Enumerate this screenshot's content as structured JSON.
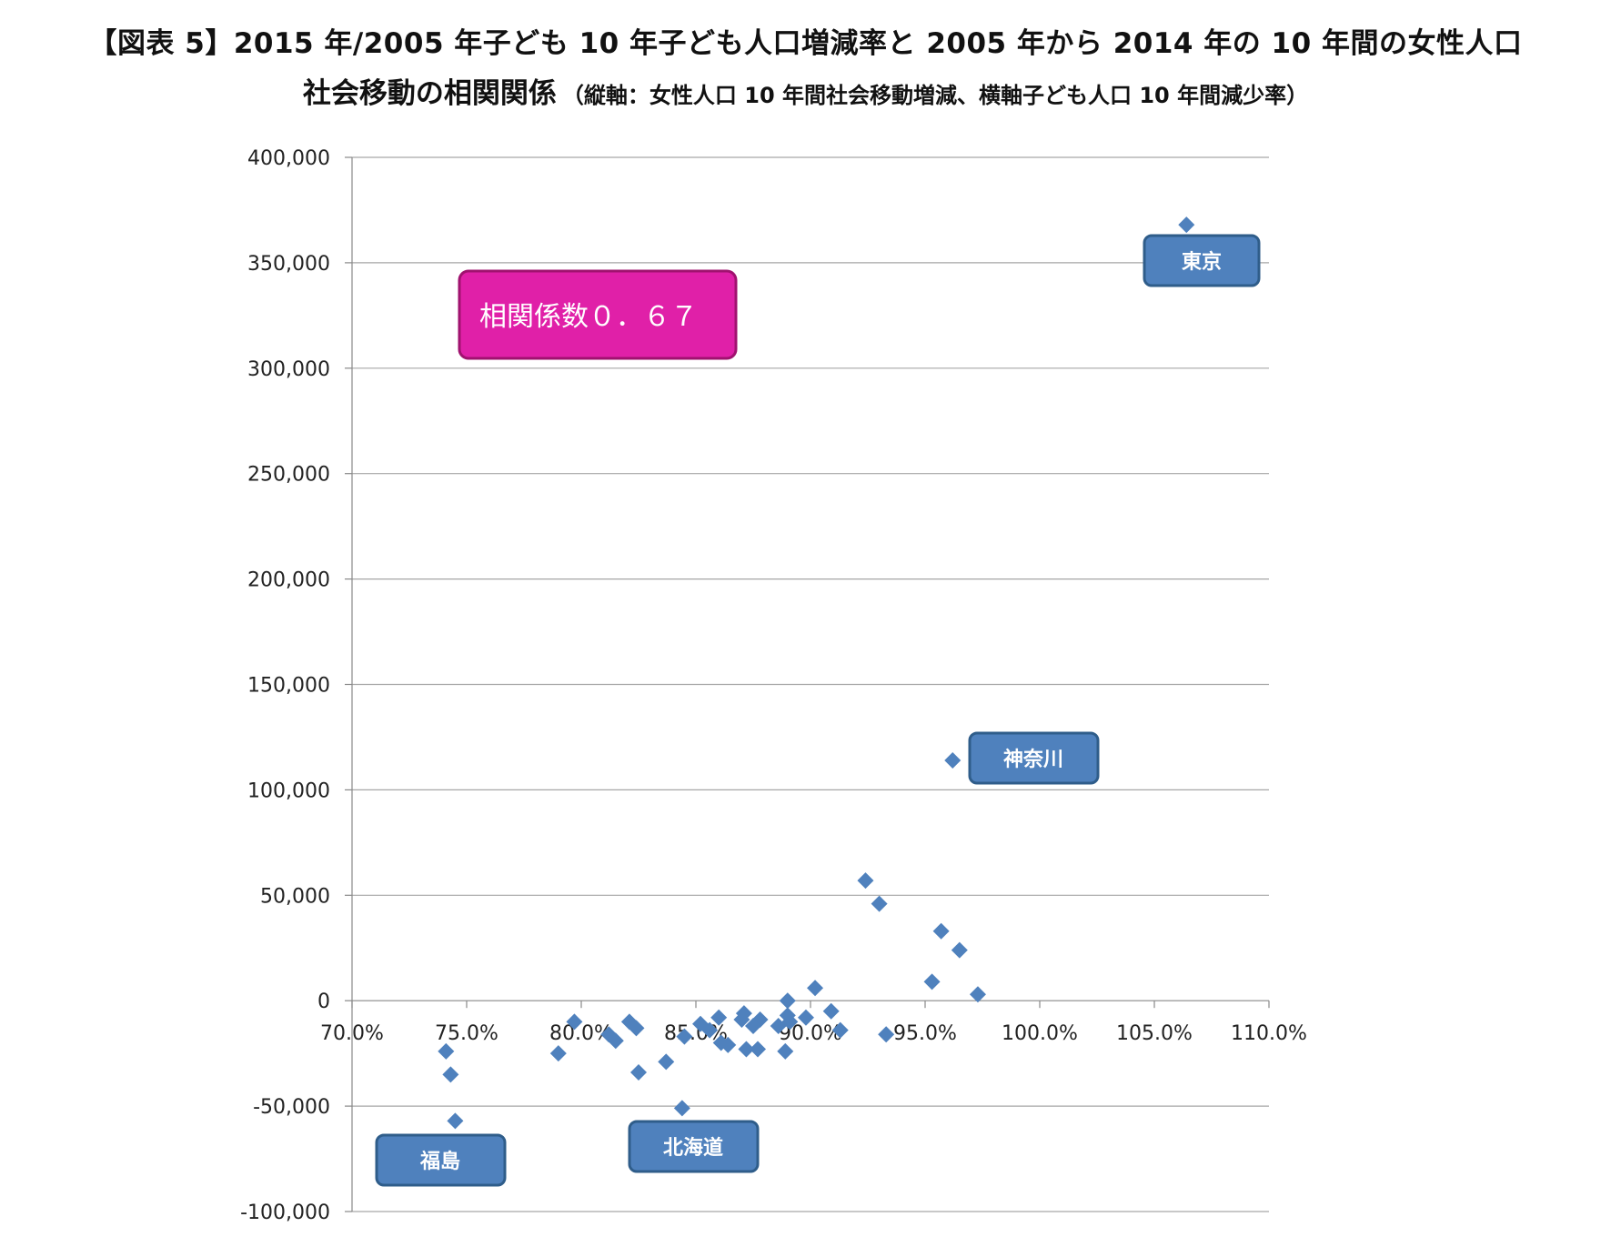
{
  "title": {
    "line1": "【図表 5】2015 年/2005 年子ども 10 年子ども人口増減率と 2005 年から 2014 年の 10 年間の女性人口",
    "line2_main": "社会移動の相関関係",
    "line2_sub": "（縦軸：女性人口 10 年間社会移動増減、横軸子ども人口 10 年間減少率）"
  },
  "correlation_label": "相関係数０．６７",
  "colors": {
    "marker": "#4f81bd",
    "callout_fill": "#4f81bd",
    "callout_stroke": "#2f5d8a",
    "corr_fill": "#e020a8",
    "corr_stroke": "#a0126f",
    "grid": "#a6a6a6"
  },
  "chart_data": {
    "type": "scatter",
    "xlim": [
      70,
      110
    ],
    "ylim": [
      -100000,
      400000
    ],
    "x_ticks": [
      {
        "value": 70,
        "label": "70.0%"
      },
      {
        "value": 75,
        "label": "75.0%"
      },
      {
        "value": 80,
        "label": "80.0%"
      },
      {
        "value": 85,
        "label": "85.0%"
      },
      {
        "value": 90,
        "label": "90.0%"
      },
      {
        "value": 95,
        "label": "95.0%"
      },
      {
        "value": 100,
        "label": "100.0%"
      },
      {
        "value": 105,
        "label": "105.0%"
      },
      {
        "value": 110,
        "label": "110.0%"
      }
    ],
    "y_ticks": [
      {
        "value": 400000,
        "label": "400,000"
      },
      {
        "value": 350000,
        "label": "350,000"
      },
      {
        "value": 300000,
        "label": "300,000"
      },
      {
        "value": 250000,
        "label": "250,000"
      },
      {
        "value": 200000,
        "label": "200,000"
      },
      {
        "value": 150000,
        "label": "150,000"
      },
      {
        "value": 100000,
        "label": "100,000"
      },
      {
        "value": 50000,
        "label": "50,000"
      },
      {
        "value": 0,
        "label": "0"
      },
      {
        "value": -50000,
        "label": "-50,000"
      },
      {
        "value": -100000,
        "label": "-100,000"
      }
    ],
    "grid": true,
    "points": [
      {
        "x": 106.4,
        "y": 368000
      },
      {
        "x": 96.2,
        "y": 114000
      },
      {
        "x": 92.4,
        "y": 57000
      },
      {
        "x": 93.0,
        "y": 46000
      },
      {
        "x": 95.7,
        "y": 33000
      },
      {
        "x": 96.5,
        "y": 24000
      },
      {
        "x": 95.3,
        "y": 9000
      },
      {
        "x": 97.3,
        "y": 3000
      },
      {
        "x": 90.2,
        "y": 6000
      },
      {
        "x": 89.0,
        "y": 0
      },
      {
        "x": 90.9,
        "y": -5000
      },
      {
        "x": 89.8,
        "y": -8000
      },
      {
        "x": 89.1,
        "y": -10000
      },
      {
        "x": 91.3,
        "y": -14000
      },
      {
        "x": 93.3,
        "y": -16000
      },
      {
        "x": 88.6,
        "y": -12000
      },
      {
        "x": 87.8,
        "y": -9000
      },
      {
        "x": 87.5,
        "y": -12000
      },
      {
        "x": 87.1,
        "y": -6000
      },
      {
        "x": 87.0,
        "y": -9000
      },
      {
        "x": 86.0,
        "y": -8000
      },
      {
        "x": 85.2,
        "y": -11000
      },
      {
        "x": 85.6,
        "y": -14000
      },
      {
        "x": 84.5,
        "y": -17000
      },
      {
        "x": 86.1,
        "y": -20000
      },
      {
        "x": 86.4,
        "y": -21000
      },
      {
        "x": 87.2,
        "y": -23000
      },
      {
        "x": 87.7,
        "y": -23000
      },
      {
        "x": 88.9,
        "y": -24000
      },
      {
        "x": 89.0,
        "y": -7000
      },
      {
        "x": 82.1,
        "y": -10000
      },
      {
        "x": 82.4,
        "y": -13000
      },
      {
        "x": 81.5,
        "y": -19000
      },
      {
        "x": 79.7,
        "y": -10000
      },
      {
        "x": 81.2,
        "y": -16000
      },
      {
        "x": 83.7,
        "y": -29000
      },
      {
        "x": 82.5,
        "y": -34000
      },
      {
        "x": 79.0,
        "y": -25000
      },
      {
        "x": 84.4,
        "y": -51000
      },
      {
        "x": 74.1,
        "y": -24000
      },
      {
        "x": 74.3,
        "y": -35000
      },
      {
        "x": 74.5,
        "y": -57000
      }
    ],
    "callouts": [
      "東京",
      "神奈川",
      "福島",
      "北海道"
    ]
  }
}
